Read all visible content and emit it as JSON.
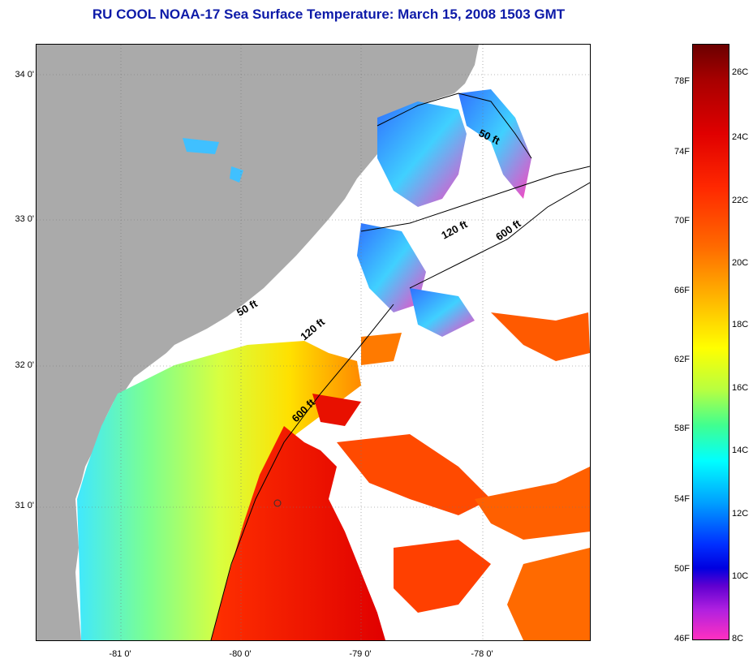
{
  "title": "RU COOL  NOAA-17  Sea Surface Temperature:  March 15, 2008 1503 GMT",
  "map": {
    "lat_labels": [
      "34 0'",
      "33 0'",
      "32 0'",
      "31 0'"
    ],
    "lon_labels": [
      "-81 0'",
      "-80 0'",
      "-79 0'",
      "-78 0'"
    ],
    "isobath_labels": [
      "50 ft",
      "120 ft",
      "600 ft",
      "50 ft",
      "120 ft",
      "600 ft"
    ]
  },
  "colorbar": {
    "fahrenheit": [
      "78F",
      "74F",
      "70F",
      "66F",
      "62F",
      "58F",
      "54F",
      "50F",
      "46F"
    ],
    "celsius": [
      "26C",
      "24C",
      "22C",
      "20C",
      "18C",
      "16C",
      "14C",
      "12C",
      "10C",
      "8C"
    ]
  },
  "colors": {
    "title": "#0d1aa8",
    "land": "#aaaaaa",
    "cloud": "#ffffff"
  }
}
